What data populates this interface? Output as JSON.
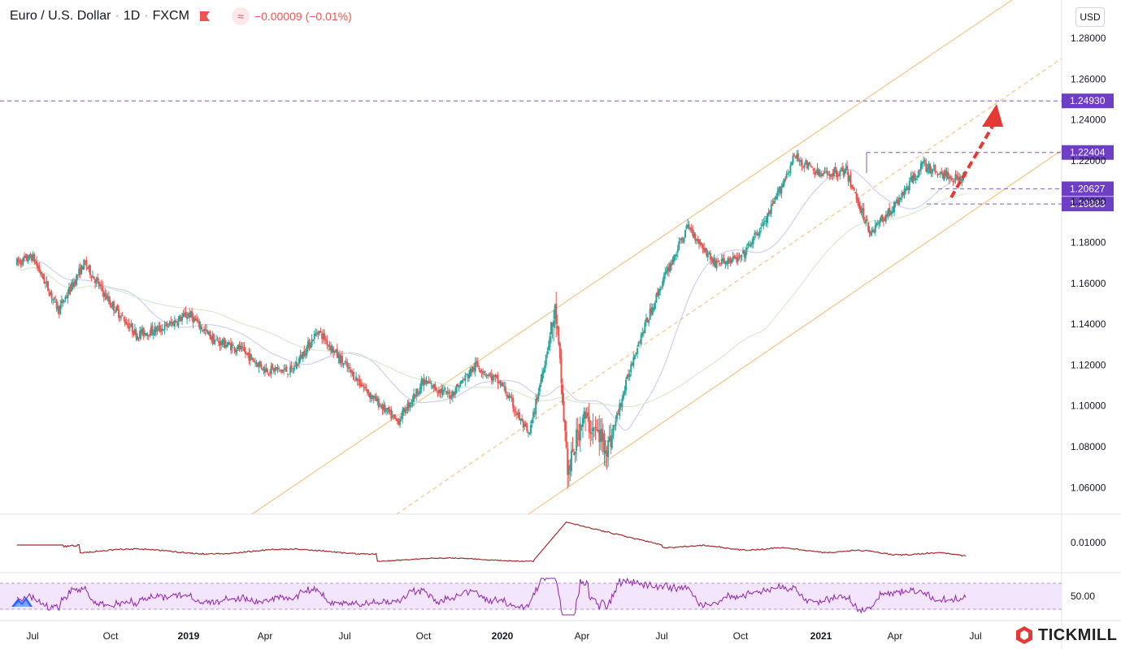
{
  "header": {
    "symbol": "Euro / U.S. Dollar",
    "interval": "1D",
    "exchange": "FXCM",
    "change": "−0.00009 (−0.01%)",
    "currency": "USD"
  },
  "brand": "TICKMILL",
  "colors": {
    "up": "#26a69a",
    "down": "#ef5350",
    "channel": "#f7b96b",
    "label": "#6c3fc5",
    "volatility": "#a52a2a",
    "rsi": "#8e24aa",
    "rsi_band": "#f3e5fb",
    "arrow": "#e53935"
  },
  "price_axis": {
    "ticks": [
      "1.28000",
      "1.26000",
      "1.24000",
      "1.22000",
      "1.20000",
      "1.18000",
      "1.16000",
      "1.14000",
      "1.12000",
      "1.10000",
      "1.08000",
      "1.06000"
    ],
    "tick_values": [
      1.28,
      1.26,
      1.24,
      1.22,
      1.2,
      1.18,
      1.16,
      1.14,
      1.12,
      1.1,
      1.08,
      1.06
    ]
  },
  "time_axis": [
    "Jul",
    "Oct",
    "2019",
    "Apr",
    "Jul",
    "Oct",
    "2020",
    "Apr",
    "Jul",
    "Oct",
    "2021",
    "Apr",
    "Jul"
  ],
  "indicator1": {
    "tick": "0.01000"
  },
  "indicator2": {
    "tick": "50.00"
  },
  "chart_data": {
    "type": "candlestick",
    "title": "Euro / U.S. Dollar 1D FXCM",
    "price_range": [
      1.0525,
      1.2895
    ],
    "horizontal_levels": [
      {
        "label": "1.24930",
        "value": 1.2493,
        "style": "dashed"
      },
      {
        "label": "1.22404",
        "value": 1.22404,
        "style": "dashed"
      },
      {
        "label": "1.20627",
        "value": 1.20627,
        "style": "dashed"
      },
      {
        "label": "1.19883",
        "value": 1.19883,
        "style": "dashed"
      }
    ],
    "price_path": [
      {
        "date": "2018-06",
        "close": 1.168
      },
      {
        "date": "2018-07",
        "close": 1.173
      },
      {
        "date": "2018-08",
        "close": 1.147
      },
      {
        "date": "2018-09",
        "close": 1.17
      },
      {
        "date": "2018-10",
        "close": 1.15
      },
      {
        "date": "2018-11",
        "close": 1.135
      },
      {
        "date": "2018-12",
        "close": 1.138
      },
      {
        "date": "2019-01",
        "close": 1.145
      },
      {
        "date": "2019-02",
        "close": 1.132
      },
      {
        "date": "2019-03",
        "close": 1.128
      },
      {
        "date": "2019-04",
        "close": 1.118
      },
      {
        "date": "2019-05",
        "close": 1.117
      },
      {
        "date": "2019-06",
        "close": 1.137
      },
      {
        "date": "2019-07",
        "close": 1.12
      },
      {
        "date": "2019-08",
        "close": 1.105
      },
      {
        "date": "2019-09",
        "close": 1.092
      },
      {
        "date": "2019-10",
        "close": 1.112
      },
      {
        "date": "2019-11",
        "close": 1.105
      },
      {
        "date": "2019-12",
        "close": 1.12
      },
      {
        "date": "2020-01",
        "close": 1.11
      },
      {
        "date": "2020-02",
        "close": 1.085
      },
      {
        "date": "2020-03",
        "close": 1.147
      },
      {
        "date": "2020-03",
        "close": 1.066
      },
      {
        "date": "2020-04",
        "close": 1.095
      },
      {
        "date": "2020-05",
        "close": 1.08
      },
      {
        "date": "2020-06",
        "close": 1.127
      },
      {
        "date": "2020-07",
        "close": 1.16
      },
      {
        "date": "2020-08",
        "close": 1.188
      },
      {
        "date": "2020-09",
        "close": 1.17
      },
      {
        "date": "2020-10",
        "close": 1.172
      },
      {
        "date": "2020-11",
        "close": 1.192
      },
      {
        "date": "2020-12",
        "close": 1.222
      },
      {
        "date": "2021-01",
        "close": 1.213
      },
      {
        "date": "2021-02",
        "close": 1.215
      },
      {
        "date": "2021-03",
        "close": 1.185
      },
      {
        "date": "2021-04",
        "close": 1.198
      },
      {
        "date": "2021-05",
        "close": 1.218
      },
      {
        "date": "2021-06",
        "close": 1.212
      }
    ],
    "projection": {
      "from": "2021-06",
      "from_value": 1.202,
      "to": "2021-07",
      "to_value": 1.248
    }
  }
}
